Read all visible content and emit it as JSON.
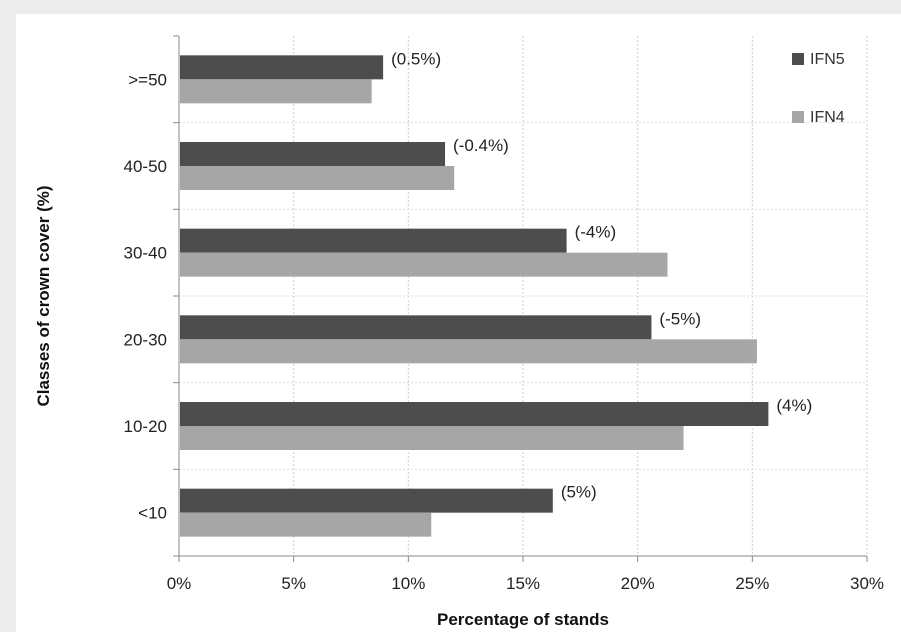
{
  "chart_data": {
    "type": "bar",
    "orientation": "horizontal",
    "categories": [
      "<10",
      "10-20",
      "20-30",
      "30-40",
      "40-50",
      ">=50"
    ],
    "series": [
      {
        "name": "IFN5",
        "color": "#4d4d4d",
        "values": [
          16.3,
          25.7,
          20.6,
          16.9,
          11.6,
          8.9
        ]
      },
      {
        "name": "IFN4",
        "color": "#a6a6a6",
        "values": [
          11.0,
          22.0,
          25.2,
          21.3,
          12.0,
          8.4
        ]
      }
    ],
    "data_labels": [
      "(5%)",
      "(4%)",
      "(-5%)",
      "(-4%)",
      "(-0.4%)",
      "(0.5%)"
    ],
    "xlabel": "Percentage of stands",
    "ylabel": "Classes of crown cover (%)",
    "xlim": [
      0,
      30
    ],
    "x_ticks": [
      0,
      5,
      10,
      15,
      20,
      25,
      30
    ],
    "x_tick_labels": [
      "0%",
      "5%",
      "10%",
      "15%",
      "20%",
      "25%",
      "30%"
    ],
    "grid": "vertical dotted",
    "legend_position": "top-right"
  }
}
